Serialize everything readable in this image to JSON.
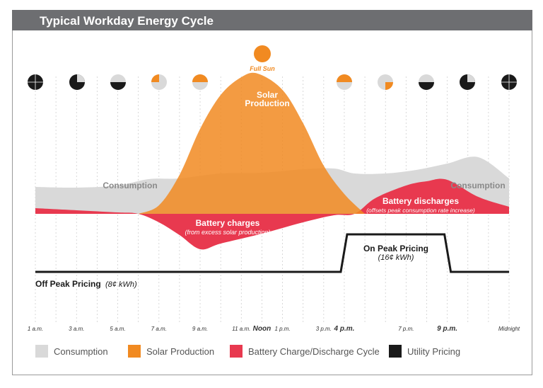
{
  "title": "Typical Workday Energy Cycle",
  "colors": {
    "consumption": "#d9d9d9",
    "solar": "#f18a21",
    "battery": "#e8394f",
    "pricing": "#1a1a1a",
    "header": "#6d6e71"
  },
  "sun_icons": [
    {
      "state": "dark"
    },
    {
      "state": "quarter-dark"
    },
    {
      "state": "half-dark"
    },
    {
      "state": "quarter-orange"
    },
    {
      "state": "half-orange"
    },
    {
      "state": "full"
    },
    {
      "state": "half-orange"
    },
    {
      "state": "quarter-orange"
    },
    {
      "state": "half-dark"
    },
    {
      "state": "quarter-dark"
    },
    {
      "state": "dark"
    }
  ],
  "sun_full_label": "Full Sun",
  "chart_data": {
    "type": "area",
    "x_unit": "hour",
    "x_ticks": [
      {
        "hour": 1,
        "label": "1 a.m.",
        "bold": false
      },
      {
        "hour": 3,
        "label": "3 a.m.",
        "bold": false
      },
      {
        "hour": 5,
        "label": "5 a.m.",
        "bold": false
      },
      {
        "hour": 7,
        "label": "7 a.m.",
        "bold": false
      },
      {
        "hour": 9,
        "label": "9 a.m.",
        "bold": false
      },
      {
        "hour": 11,
        "label": "11 a.m.",
        "bold": false
      },
      {
        "hour": 12,
        "label": "Noon",
        "bold": true
      },
      {
        "hour": 13,
        "label": "1 p.m.",
        "bold": false
      },
      {
        "hour": 15,
        "label": "3 p.m.",
        "bold": false
      },
      {
        "hour": 16,
        "label": "4 p.m.",
        "bold": true
      },
      {
        "hour": 19,
        "label": "7 p.m.",
        "bold": false
      },
      {
        "hour": 21,
        "label": "9 p.m.",
        "bold": true
      },
      {
        "hour": 24,
        "label": "Midnight",
        "bold": false
      }
    ],
    "series": [
      {
        "name": "Consumption",
        "color": "#d9d9d9",
        "points": [
          [
            1,
            38
          ],
          [
            3,
            37
          ],
          [
            5,
            40
          ],
          [
            6.5,
            49
          ],
          [
            8,
            50
          ],
          [
            10,
            57
          ],
          [
            12,
            58
          ],
          [
            14,
            63
          ],
          [
            15.5,
            64
          ],
          [
            16.5,
            57
          ],
          [
            18,
            57
          ],
          [
            19.5,
            62
          ],
          [
            21,
            71
          ],
          [
            22.5,
            80
          ],
          [
            24,
            50
          ]
        ]
      },
      {
        "name": "Solar Production",
        "color": "#f18a21",
        "points": [
          [
            6,
            0
          ],
          [
            7,
            12
          ],
          [
            8,
            55
          ],
          [
            9,
            120
          ],
          [
            10,
            168
          ],
          [
            11,
            193
          ],
          [
            11.8,
            198
          ],
          [
            13,
            175
          ],
          [
            14,
            128
          ],
          [
            15,
            68
          ],
          [
            16,
            28
          ],
          [
            17,
            0
          ]
        ]
      },
      {
        "name": "Battery Charge/Discharge Cycle",
        "color": "#e8394f",
        "points": [
          [
            1,
            8
          ],
          [
            3,
            5
          ],
          [
            5,
            2
          ],
          [
            6,
            0
          ],
          [
            7,
            -12
          ],
          [
            8,
            -30
          ],
          [
            9,
            -50
          ],
          [
            10,
            -42
          ],
          [
            12,
            -28
          ],
          [
            14,
            -12
          ],
          [
            15.5,
            -2
          ],
          [
            16.5,
            0
          ],
          [
            17.5,
            22
          ],
          [
            19,
            40
          ],
          [
            20,
            46
          ],
          [
            21,
            48
          ],
          [
            22.5,
            24
          ],
          [
            24,
            10
          ]
        ]
      }
    ],
    "pricing": {
      "name": "Utility Pricing",
      "off_peak_label": "Off Peak Pricing",
      "off_peak_rate": "(8¢ kWh)",
      "on_peak_label": "On Peak Pricing",
      "on_peak_rate": "(16¢ kWh)",
      "on_peak_start_hour": 16,
      "on_peak_end_hour": 21
    },
    "annotations": {
      "solar": [
        "Solar",
        "Production"
      ],
      "consumption": "Consumption",
      "battery_charges": "Battery charges",
      "battery_charges_note": "(from excess solar production)",
      "battery_discharges": "Battery discharges",
      "battery_discharges_note": "(offsets peak consumption rate increase)"
    },
    "legend": [
      "Consumption",
      "Solar Production",
      "Battery Charge/Discharge Cycle",
      "Utility Pricing"
    ]
  }
}
